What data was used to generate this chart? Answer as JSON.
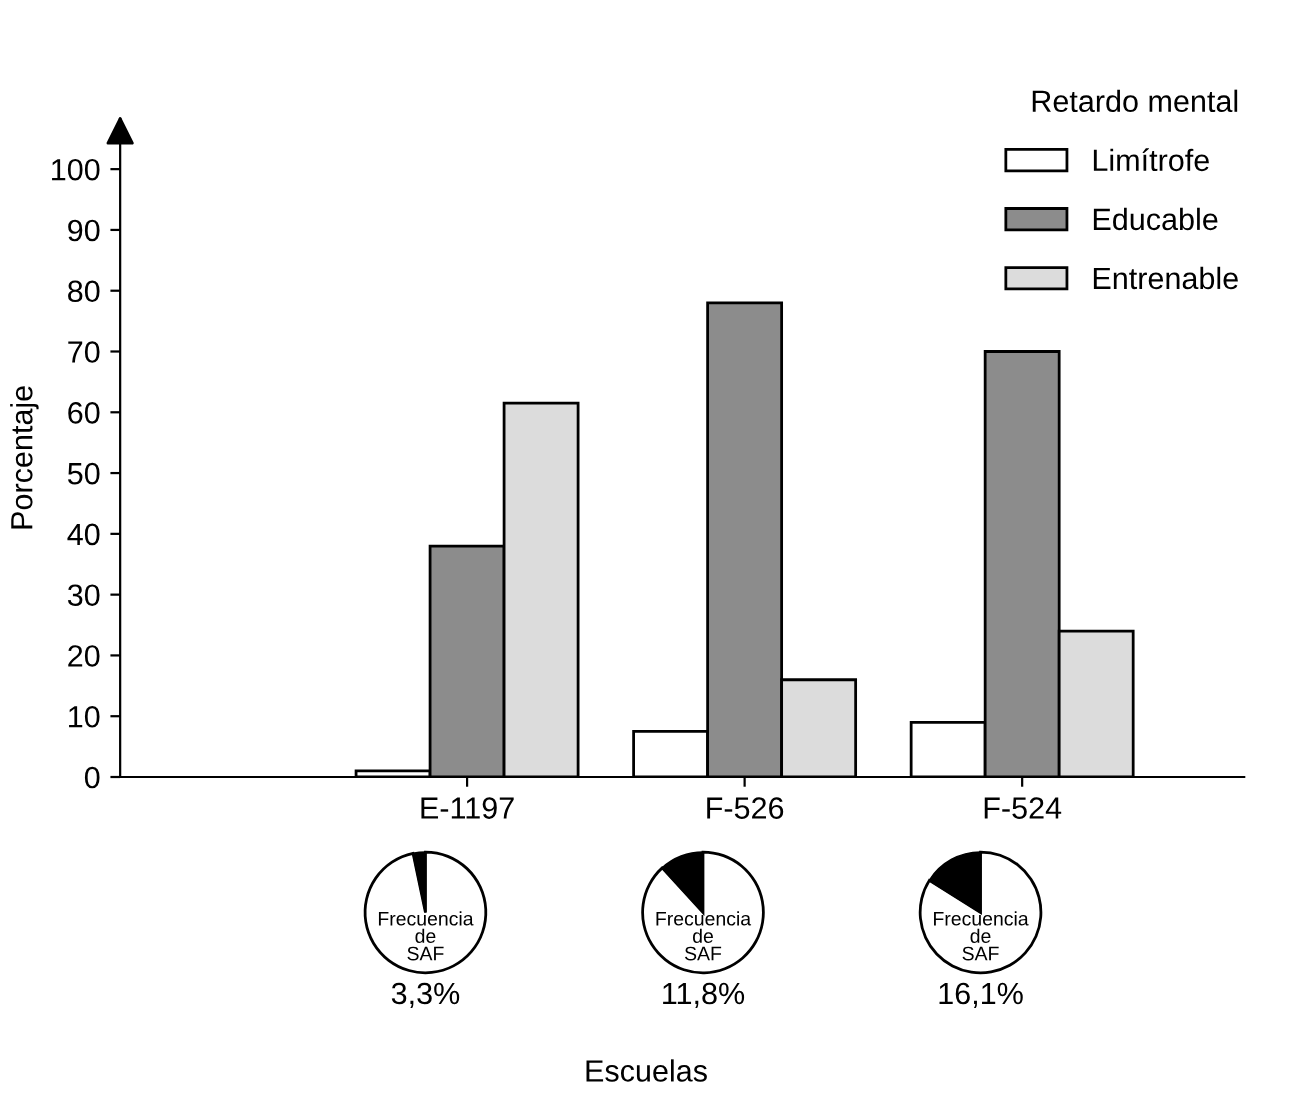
{
  "chart_data": [
    {
      "type": "bar",
      "ylabel": "Porcentaje",
      "xlabel": "Escuelas",
      "legend_title": "Retardo mental",
      "legend": "top right",
      "grid": false,
      "categories": [
        "E-1197",
        "F-526",
        "F-524"
      ],
      "ylim": [
        0,
        105
      ],
      "yticks": [
        0,
        10,
        20,
        30,
        40,
        50,
        60,
        70,
        80,
        90,
        100
      ],
      "series": [
        {
          "name": "Limítrofe",
          "color": "#ffffff",
          "values": [
            1,
            7.5,
            9
          ]
        },
        {
          "name": "Educable",
          "color": "#8c8c8c",
          "values": [
            38,
            78,
            70
          ]
        },
        {
          "name": "Entrenable",
          "color": "#dcdcdc",
          "values": [
            61.5,
            16,
            24
          ]
        }
      ]
    },
    {
      "type": "pie",
      "categories": [
        null,
        null
      ],
      "values": [
        3.3,
        96.7
      ],
      "colors": [
        "#000000",
        "#ffffff"
      ],
      "annotations": [
        "Frecuencia\nde\nSAF",
        "3,3%"
      ]
    },
    {
      "type": "pie",
      "categories": [
        null,
        null
      ],
      "values": [
        11.8,
        88.2
      ],
      "colors": [
        "#000000",
        "#ffffff"
      ],
      "annotations": [
        "Frecuencia\nde\nSAF",
        "11,8%"
      ]
    },
    {
      "type": "pie",
      "categories": [
        null,
        null
      ],
      "values": [
        16.1,
        83.9
      ],
      "colors": [
        "#000000",
        "#ffffff"
      ],
      "annotations": [
        "Frecuencia\nde\nSAF",
        "16,1%"
      ]
    }
  ]
}
